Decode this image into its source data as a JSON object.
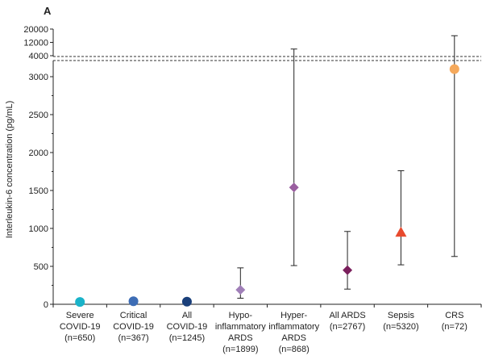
{
  "chart_data": {
    "type": "scatter",
    "panel_label": "A",
    "ylabel": "Interleukin-6 concentration (pg/mL)",
    "ylim_lower": [
      0,
      3300
    ],
    "ylim_upper": [
      4000,
      20000
    ],
    "axis_break": true,
    "yticks_lower": [
      0,
      500,
      1000,
      1500,
      2000,
      2500,
      3000
    ],
    "yticks_upper": [
      4000,
      12000,
      20000
    ],
    "ytick_labels_lower": [
      "0",
      "500",
      "1000",
      "1500",
      "2000",
      "2500",
      "3000"
    ],
    "ytick_labels_upper": [
      "4000",
      "12000",
      "20000"
    ],
    "grid": false,
    "legend": "none",
    "categories": [
      {
        "lines": [
          "Severe",
          "COVID-19",
          "(n=650)"
        ],
        "value": 30,
        "low": null,
        "high": null,
        "marker": "circle",
        "color": "#1ab3c9"
      },
      {
        "lines": [
          "Critical",
          "COVID-19",
          "(n=367)"
        ],
        "value": 40,
        "low": null,
        "high": null,
        "marker": "circle",
        "color": "#3d6db5"
      },
      {
        "lines": [
          "All",
          "COVID-19",
          "(n=1245)"
        ],
        "value": 35,
        "low": null,
        "high": null,
        "marker": "circle",
        "color": "#1a3f7a"
      },
      {
        "lines": [
          "Hypo-",
          "inflammatory",
          "ARDS",
          "(n=1899)"
        ],
        "value": 190,
        "low": 80,
        "high": 480,
        "marker": "diamond",
        "color": "#a07fb8"
      },
      {
        "lines": [
          "Hyper-",
          "inflammatory",
          "ARDS",
          "(n=868)"
        ],
        "value": 1540,
        "low": 510,
        "high": 8000,
        "marker": "diamond",
        "color": "#9a5fa0"
      },
      {
        "lines": [
          "All ARDS",
          "(n=2767)"
        ],
        "value": 450,
        "low": 200,
        "high": 960,
        "marker": "diamond",
        "color": "#7a1f5c"
      },
      {
        "lines": [
          "Sepsis",
          "(n=5320)"
        ],
        "value": 950,
        "low": 520,
        "high": 1760,
        "marker": "triangle",
        "color": "#e84a2e"
      },
      {
        "lines": [
          "CRS",
          "(n=72)"
        ],
        "value": 3100,
        "low": 630,
        "high": 16000,
        "marker": "circle",
        "color": "#f5a95c"
      }
    ]
  }
}
